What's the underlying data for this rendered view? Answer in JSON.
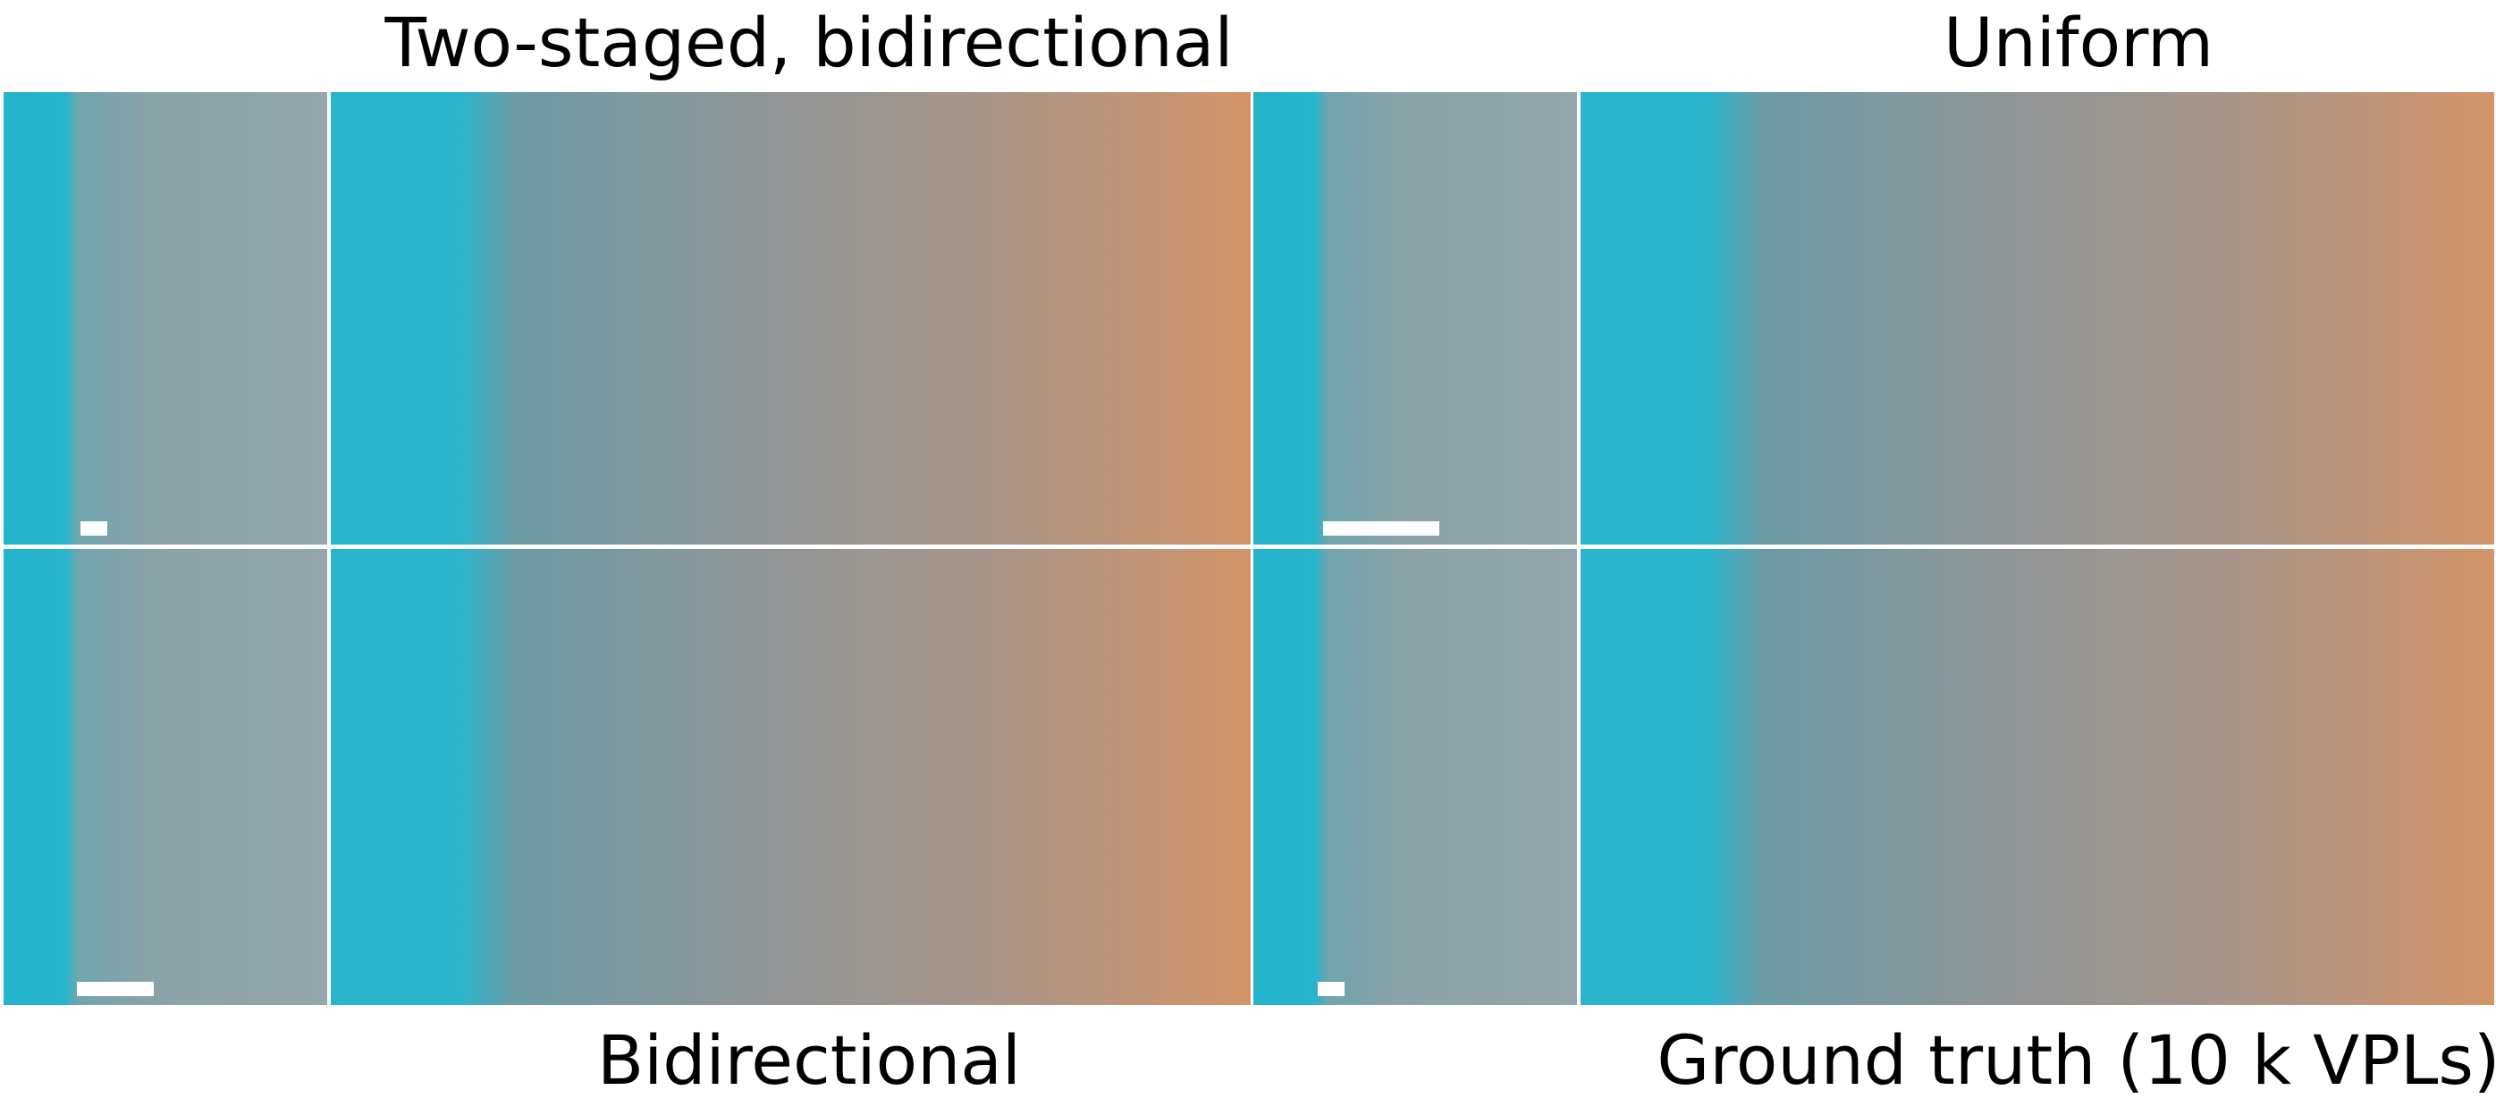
{
  "captions": {
    "top_left": "Two-staged, bidirectional",
    "top_right": "Uniform",
    "bottom_left": "Bidirectional",
    "bottom_right": "Ground truth (10 k VPLs)"
  },
  "panels": [
    {
      "id": "tl",
      "method": "Two-staged, bidirectional",
      "scale_bar_fraction": 0.05
    },
    {
      "id": "tr",
      "method": "Uniform",
      "scale_bar_fraction": 0.19
    },
    {
      "id": "bl",
      "method": "Bidirectional",
      "scale_bar_fraction": 0.13
    },
    {
      "id": "br",
      "method": "Ground truth (10 k VPLs)",
      "scale_bar_fraction": 0.05
    }
  ],
  "colors": {
    "cyan_wall": "#27b4cd",
    "grey_wall": "#8fa3a8",
    "warm_light": "#d39468",
    "vpl_dot": "#ffffff",
    "background": "#ffffff"
  }
}
